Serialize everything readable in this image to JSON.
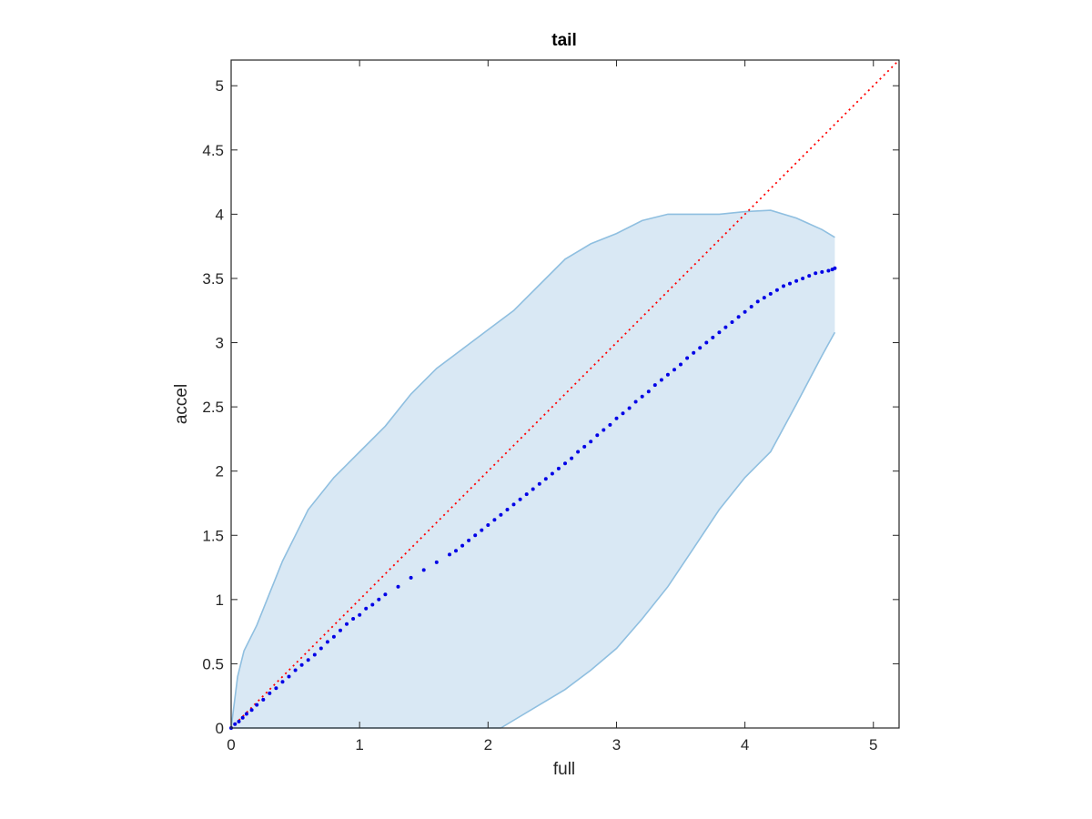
{
  "chart_data": {
    "type": "scatter",
    "title": "tail",
    "xlabel": "full",
    "ylabel": "accel",
    "xlim": [
      0,
      5.2
    ],
    "ylim": [
      0,
      5.2
    ],
    "xticks": [
      0,
      1,
      2,
      3,
      4,
      5
    ],
    "yticks": [
      0,
      0.5,
      1,
      1.5,
      2,
      2.5,
      3,
      3.5,
      4,
      4.5,
      5
    ],
    "xtick_labels": [
      "0",
      "1",
      "2",
      "3",
      "4",
      "5"
    ],
    "ytick_labels": [
      "0",
      "0.5",
      "1",
      "1.5",
      "2",
      "2.5",
      "3",
      "3.5",
      "4",
      "4.5",
      "5"
    ],
    "grid": false,
    "colors": {
      "band_fill": "#d9e8f4",
      "band_edge": "#8fbfe0",
      "points": "#0000e6",
      "reference_line": "#ff0000",
      "axes": "#262626"
    },
    "band": {
      "upper": [
        [
          0.0,
          0.0
        ],
        [
          0.05,
          0.4
        ],
        [
          0.1,
          0.6
        ],
        [
          0.2,
          0.8
        ],
        [
          0.3,
          1.05
        ],
        [
          0.4,
          1.3
        ],
        [
          0.5,
          1.5
        ],
        [
          0.6,
          1.7
        ],
        [
          0.8,
          1.95
        ],
        [
          1.0,
          2.15
        ],
        [
          1.2,
          2.35
        ],
        [
          1.4,
          2.6
        ],
        [
          1.6,
          2.8
        ],
        [
          1.8,
          2.95
        ],
        [
          2.0,
          3.1
        ],
        [
          2.2,
          3.25
        ],
        [
          2.4,
          3.45
        ],
        [
          2.6,
          3.65
        ],
        [
          2.8,
          3.77
        ],
        [
          3.0,
          3.85
        ],
        [
          3.2,
          3.95
        ],
        [
          3.4,
          4.0
        ],
        [
          3.6,
          4.0
        ],
        [
          3.8,
          4.0
        ],
        [
          4.0,
          4.02
        ],
        [
          4.2,
          4.03
        ],
        [
          4.4,
          3.97
        ],
        [
          4.6,
          3.88
        ],
        [
          4.7,
          3.82
        ]
      ],
      "lower": [
        [
          4.7,
          3.08
        ],
        [
          4.6,
          2.9
        ],
        [
          4.4,
          2.52
        ],
        [
          4.2,
          2.15
        ],
        [
          4.0,
          1.95
        ],
        [
          3.8,
          1.7
        ],
        [
          3.6,
          1.4
        ],
        [
          3.4,
          1.1
        ],
        [
          3.2,
          0.85
        ],
        [
          3.0,
          0.62
        ],
        [
          2.8,
          0.45
        ],
        [
          2.6,
          0.3
        ],
        [
          2.4,
          0.18
        ],
        [
          2.2,
          0.06
        ],
        [
          2.1,
          0.0
        ],
        [
          0.0,
          0.0
        ]
      ]
    },
    "reference_line": {
      "style": "dotted",
      "x": [
        0,
        5.2
      ],
      "y": [
        0,
        5.2
      ]
    },
    "series": [
      {
        "x": [
          0.0,
          0.03,
          0.06,
          0.09,
          0.12,
          0.16,
          0.2,
          0.25,
          0.3,
          0.35,
          0.4,
          0.45,
          0.5,
          0.55,
          0.6,
          0.65,
          0.7,
          0.75,
          0.8,
          0.85,
          0.9,
          0.95,
          1.0,
          1.05,
          1.1,
          1.15,
          1.2,
          1.3,
          1.4,
          1.5,
          1.6,
          1.7,
          1.75,
          1.8,
          1.85,
          1.9,
          1.95,
          2.0,
          2.05,
          2.1,
          2.15,
          2.2,
          2.25,
          2.3,
          2.35,
          2.4,
          2.45,
          2.5,
          2.55,
          2.6,
          2.65,
          2.7,
          2.75,
          2.8,
          2.85,
          2.9,
          2.95,
          3.0,
          3.05,
          3.1,
          3.15,
          3.2,
          3.25,
          3.3,
          3.35,
          3.4,
          3.45,
          3.5,
          3.55,
          3.6,
          3.65,
          3.7,
          3.75,
          3.8,
          3.85,
          3.9,
          3.95,
          4.0,
          4.05,
          4.1,
          4.15,
          4.2,
          4.25,
          4.3,
          4.35,
          4.4,
          4.45,
          4.5,
          4.55,
          4.6,
          4.65,
          4.68,
          4.7
        ],
        "y": [
          0.0,
          0.03,
          0.05,
          0.08,
          0.11,
          0.14,
          0.18,
          0.22,
          0.27,
          0.31,
          0.36,
          0.4,
          0.45,
          0.49,
          0.53,
          0.57,
          0.62,
          0.67,
          0.71,
          0.76,
          0.81,
          0.85,
          0.88,
          0.93,
          0.96,
          1.0,
          1.04,
          1.1,
          1.17,
          1.23,
          1.29,
          1.35,
          1.38,
          1.42,
          1.46,
          1.5,
          1.54,
          1.58,
          1.62,
          1.66,
          1.7,
          1.74,
          1.78,
          1.82,
          1.86,
          1.9,
          1.94,
          1.98,
          2.02,
          2.06,
          2.1,
          2.15,
          2.19,
          2.23,
          2.28,
          2.32,
          2.36,
          2.41,
          2.45,
          2.49,
          2.54,
          2.58,
          2.62,
          2.67,
          2.71,
          2.75,
          2.79,
          2.83,
          2.88,
          2.92,
          2.96,
          3.0,
          3.04,
          3.08,
          3.12,
          3.16,
          3.2,
          3.24,
          3.28,
          3.32,
          3.35,
          3.38,
          3.41,
          3.44,
          3.46,
          3.48,
          3.5,
          3.52,
          3.54,
          3.55,
          3.56,
          3.57,
          3.58
        ]
      }
    ]
  }
}
